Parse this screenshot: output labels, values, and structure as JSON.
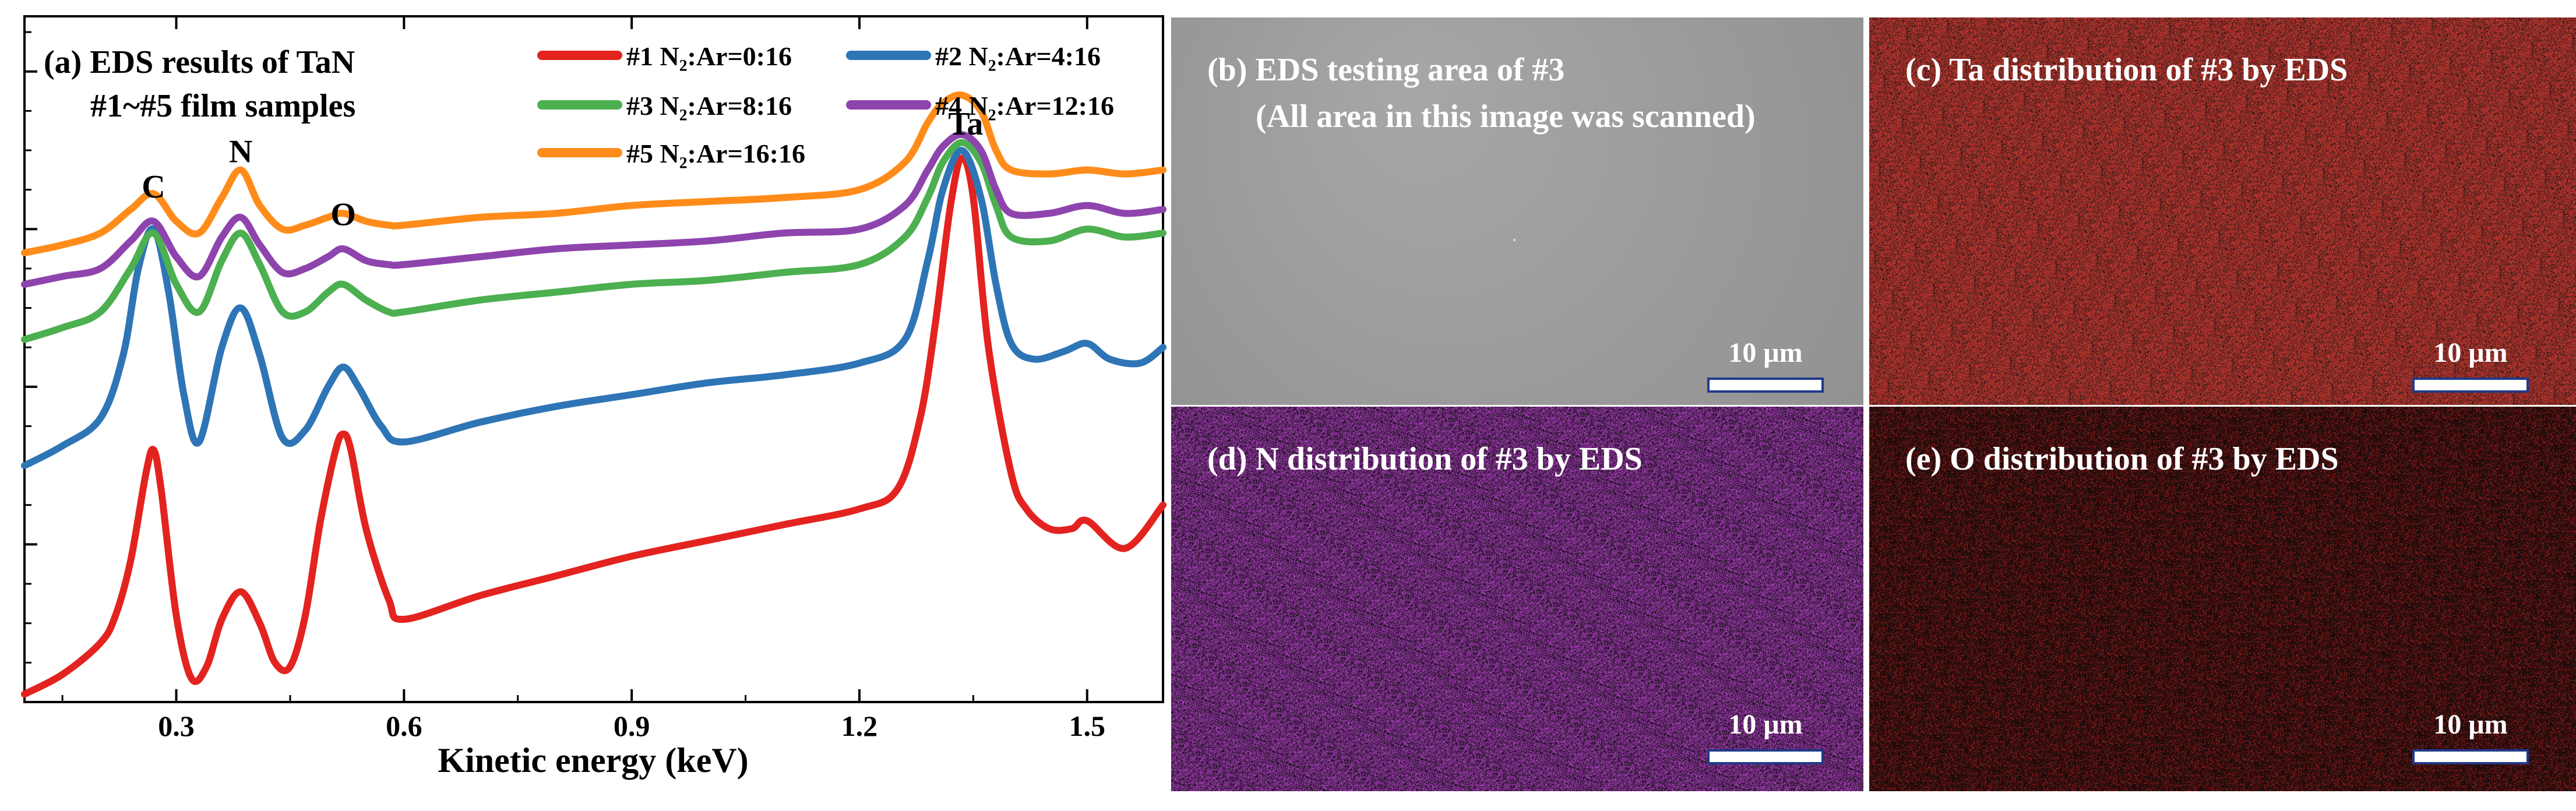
{
  "chart_data": {
    "type": "line",
    "title_line1": "(a) EDS results of TaN",
    "title_line2": "#1~#5 film samples",
    "xlabel": "Kinetic energy (keV)",
    "ylabel": "",
    "xlim": [
      0.1,
      1.6
    ],
    "ylim": [
      0,
      8.7
    ],
    "xticks": [
      0.3,
      0.6,
      0.9,
      1.2,
      1.5
    ],
    "xtick_labels": [
      "0.3",
      "0.6",
      "0.9",
      "1.2",
      "1.5"
    ],
    "y_tick_labels_shown": false,
    "grid": false,
    "legend_position": "top-right",
    "annotations": [
      {
        "text": "C",
        "x": 0.27,
        "y": 6.4
      },
      {
        "text": "N",
        "x": 0.385,
        "y": 6.85
      },
      {
        "text": "O",
        "x": 0.52,
        "y": 6.05
      },
      {
        "text": "Ta",
        "x": 1.34,
        "y": 7.2
      }
    ],
    "series": [
      {
        "name": "#1 N₂:Ar=0:16",
        "color": "#e3231f",
        "x": [
          0.1,
          0.15,
          0.2,
          0.22,
          0.24,
          0.26,
          0.27,
          0.28,
          0.3,
          0.32,
          0.34,
          0.36,
          0.385,
          0.41,
          0.43,
          0.45,
          0.47,
          0.49,
          0.51,
          0.52,
          0.53,
          0.55,
          0.58,
          0.6,
          0.7,
          0.8,
          0.9,
          1.0,
          1.1,
          1.2,
          1.25,
          1.28,
          1.3,
          1.32,
          1.335,
          1.35,
          1.37,
          1.4,
          1.42,
          1.45,
          1.48,
          1.5,
          1.55,
          1.6
        ],
        "values": [
          0.1,
          0.35,
          0.75,
          1.1,
          1.8,
          2.9,
          3.2,
          2.7,
          1.1,
          0.3,
          0.45,
          1.05,
          1.4,
          1.0,
          0.5,
          0.45,
          1.1,
          2.3,
          3.2,
          3.4,
          3.2,
          2.2,
          1.3,
          1.05,
          1.35,
          1.6,
          1.85,
          2.05,
          2.25,
          2.45,
          2.7,
          3.6,
          4.8,
          6.3,
          6.9,
          6.4,
          4.5,
          2.9,
          2.45,
          2.2,
          2.2,
          2.3,
          1.95,
          2.5
        ]
      },
      {
        "name": "#2 N₂:Ar=4:16",
        "color": "#2e75b6",
        "x": [
          0.1,
          0.15,
          0.2,
          0.23,
          0.25,
          0.27,
          0.29,
          0.31,
          0.33,
          0.36,
          0.385,
          0.41,
          0.44,
          0.47,
          0.5,
          0.52,
          0.54,
          0.57,
          0.6,
          0.7,
          0.8,
          0.9,
          1.0,
          1.1,
          1.2,
          1.26,
          1.29,
          1.31,
          1.335,
          1.36,
          1.38,
          1.4,
          1.43,
          1.47,
          1.5,
          1.53,
          1.57,
          1.6
        ],
        "values": [
          3.0,
          3.25,
          3.6,
          4.4,
          5.5,
          6.0,
          5.2,
          3.9,
          3.3,
          4.5,
          5.0,
          4.4,
          3.35,
          3.45,
          4.0,
          4.25,
          4.0,
          3.5,
          3.3,
          3.55,
          3.75,
          3.9,
          4.05,
          4.15,
          4.3,
          4.6,
          5.6,
          6.5,
          7.0,
          6.4,
          5.3,
          4.55,
          4.35,
          4.45,
          4.55,
          4.35,
          4.3,
          4.5
        ]
      },
      {
        "name": "#3 N₂:Ar=8:16",
        "color": "#4caf50",
        "x": [
          0.1,
          0.15,
          0.2,
          0.24,
          0.27,
          0.3,
          0.33,
          0.36,
          0.385,
          0.41,
          0.44,
          0.47,
          0.5,
          0.52,
          0.55,
          0.58,
          0.6,
          0.7,
          0.8,
          0.9,
          1.0,
          1.1,
          1.2,
          1.26,
          1.29,
          1.31,
          1.335,
          1.36,
          1.38,
          1.4,
          1.45,
          1.5,
          1.55,
          1.6
        ],
        "values": [
          4.6,
          4.75,
          4.95,
          5.5,
          5.95,
          5.3,
          4.95,
          5.6,
          5.95,
          5.55,
          4.95,
          4.95,
          5.2,
          5.3,
          5.1,
          4.95,
          4.95,
          5.1,
          5.2,
          5.3,
          5.35,
          5.45,
          5.55,
          5.9,
          6.4,
          6.85,
          7.1,
          6.85,
          6.3,
          5.9,
          5.85,
          6.0,
          5.9,
          5.95
        ]
      },
      {
        "name": "#4 N₂:Ar=12:16",
        "color": "#8e44ad",
        "x": [
          0.1,
          0.15,
          0.2,
          0.24,
          0.27,
          0.3,
          0.33,
          0.36,
          0.385,
          0.41,
          0.44,
          0.47,
          0.5,
          0.52,
          0.55,
          0.58,
          0.6,
          0.7,
          0.8,
          0.9,
          1.0,
          1.1,
          1.2,
          1.26,
          1.29,
          1.31,
          1.335,
          1.36,
          1.38,
          1.4,
          1.45,
          1.5,
          1.55,
          1.6
        ],
        "values": [
          5.3,
          5.4,
          5.5,
          5.85,
          6.1,
          5.65,
          5.4,
          5.9,
          6.15,
          5.8,
          5.45,
          5.5,
          5.65,
          5.75,
          5.6,
          5.55,
          5.55,
          5.65,
          5.75,
          5.8,
          5.85,
          5.95,
          6.0,
          6.3,
          6.75,
          7.05,
          7.2,
          7.0,
          6.5,
          6.2,
          6.2,
          6.3,
          6.2,
          6.25
        ]
      },
      {
        "name": "#5 N₂:Ar=16:16",
        "color": "#ff8c1a",
        "x": [
          0.1,
          0.15,
          0.2,
          0.24,
          0.27,
          0.3,
          0.33,
          0.36,
          0.385,
          0.41,
          0.44,
          0.47,
          0.5,
          0.52,
          0.55,
          0.58,
          0.6,
          0.7,
          0.8,
          0.9,
          1.0,
          1.1,
          1.2,
          1.26,
          1.29,
          1.31,
          1.335,
          1.36,
          1.38,
          1.4,
          1.45,
          1.5,
          1.55,
          1.6
        ],
        "values": [
          5.7,
          5.8,
          5.95,
          6.25,
          6.45,
          6.1,
          5.95,
          6.4,
          6.75,
          6.3,
          6.0,
          6.05,
          6.15,
          6.2,
          6.1,
          6.05,
          6.05,
          6.15,
          6.2,
          6.3,
          6.35,
          6.4,
          6.5,
          6.85,
          7.35,
          7.6,
          7.7,
          7.5,
          7.0,
          6.75,
          6.7,
          6.75,
          6.7,
          6.75
        ]
      }
    ]
  },
  "panels": {
    "b": {
      "title": "(b) EDS testing area of #3",
      "subtitle": "(All area in this image was scanned)",
      "scale": "10 μm",
      "base_color": "#8c8c8c"
    },
    "c": {
      "title": "(c) Ta distribution of #3 by EDS",
      "scale": "10 μm",
      "base_color": "#c8281f"
    },
    "d": {
      "title": "(d) N distribution of #3 by EDS",
      "scale": "10 μm",
      "base_color": "#b43cc8"
    },
    "e": {
      "title": "(e) O distribution of #3 by EDS",
      "scale": "10 μm",
      "base_color": "#d21e1e"
    }
  }
}
